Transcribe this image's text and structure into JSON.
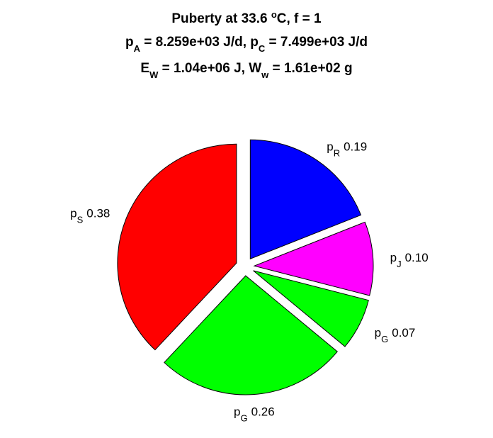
{
  "chart_data": {
    "type": "pie",
    "title": [
      [
        "Puberty at 33.6 ",
        "o",
        "C, f = 1"
      ],
      [
        "p",
        "A",
        " = 8.259e+03 J/d,  p",
        "C",
        " = 7.499e+03 J/d"
      ],
      [
        "E",
        "W",
        " = 1.04e+06 J, W",
        "w",
        " = 1.61e+02 g"
      ]
    ],
    "labels": [
      [
        "p",
        "R"
      ],
      [
        "p",
        "J"
      ],
      [
        "p",
        "G"
      ],
      [
        "p",
        "G"
      ],
      [
        "p",
        "S"
      ]
    ],
    "values": [
      0.19,
      0.1,
      0.07,
      0.26,
      0.38
    ],
    "value_labels": [
      "0.19",
      "0.10",
      "0.07",
      "0.26",
      "0.38"
    ],
    "colors": [
      "#0000ff",
      "#ff00ff",
      "#00ff00",
      "#00ff00",
      "#ff0000"
    ],
    "exploded": true
  }
}
